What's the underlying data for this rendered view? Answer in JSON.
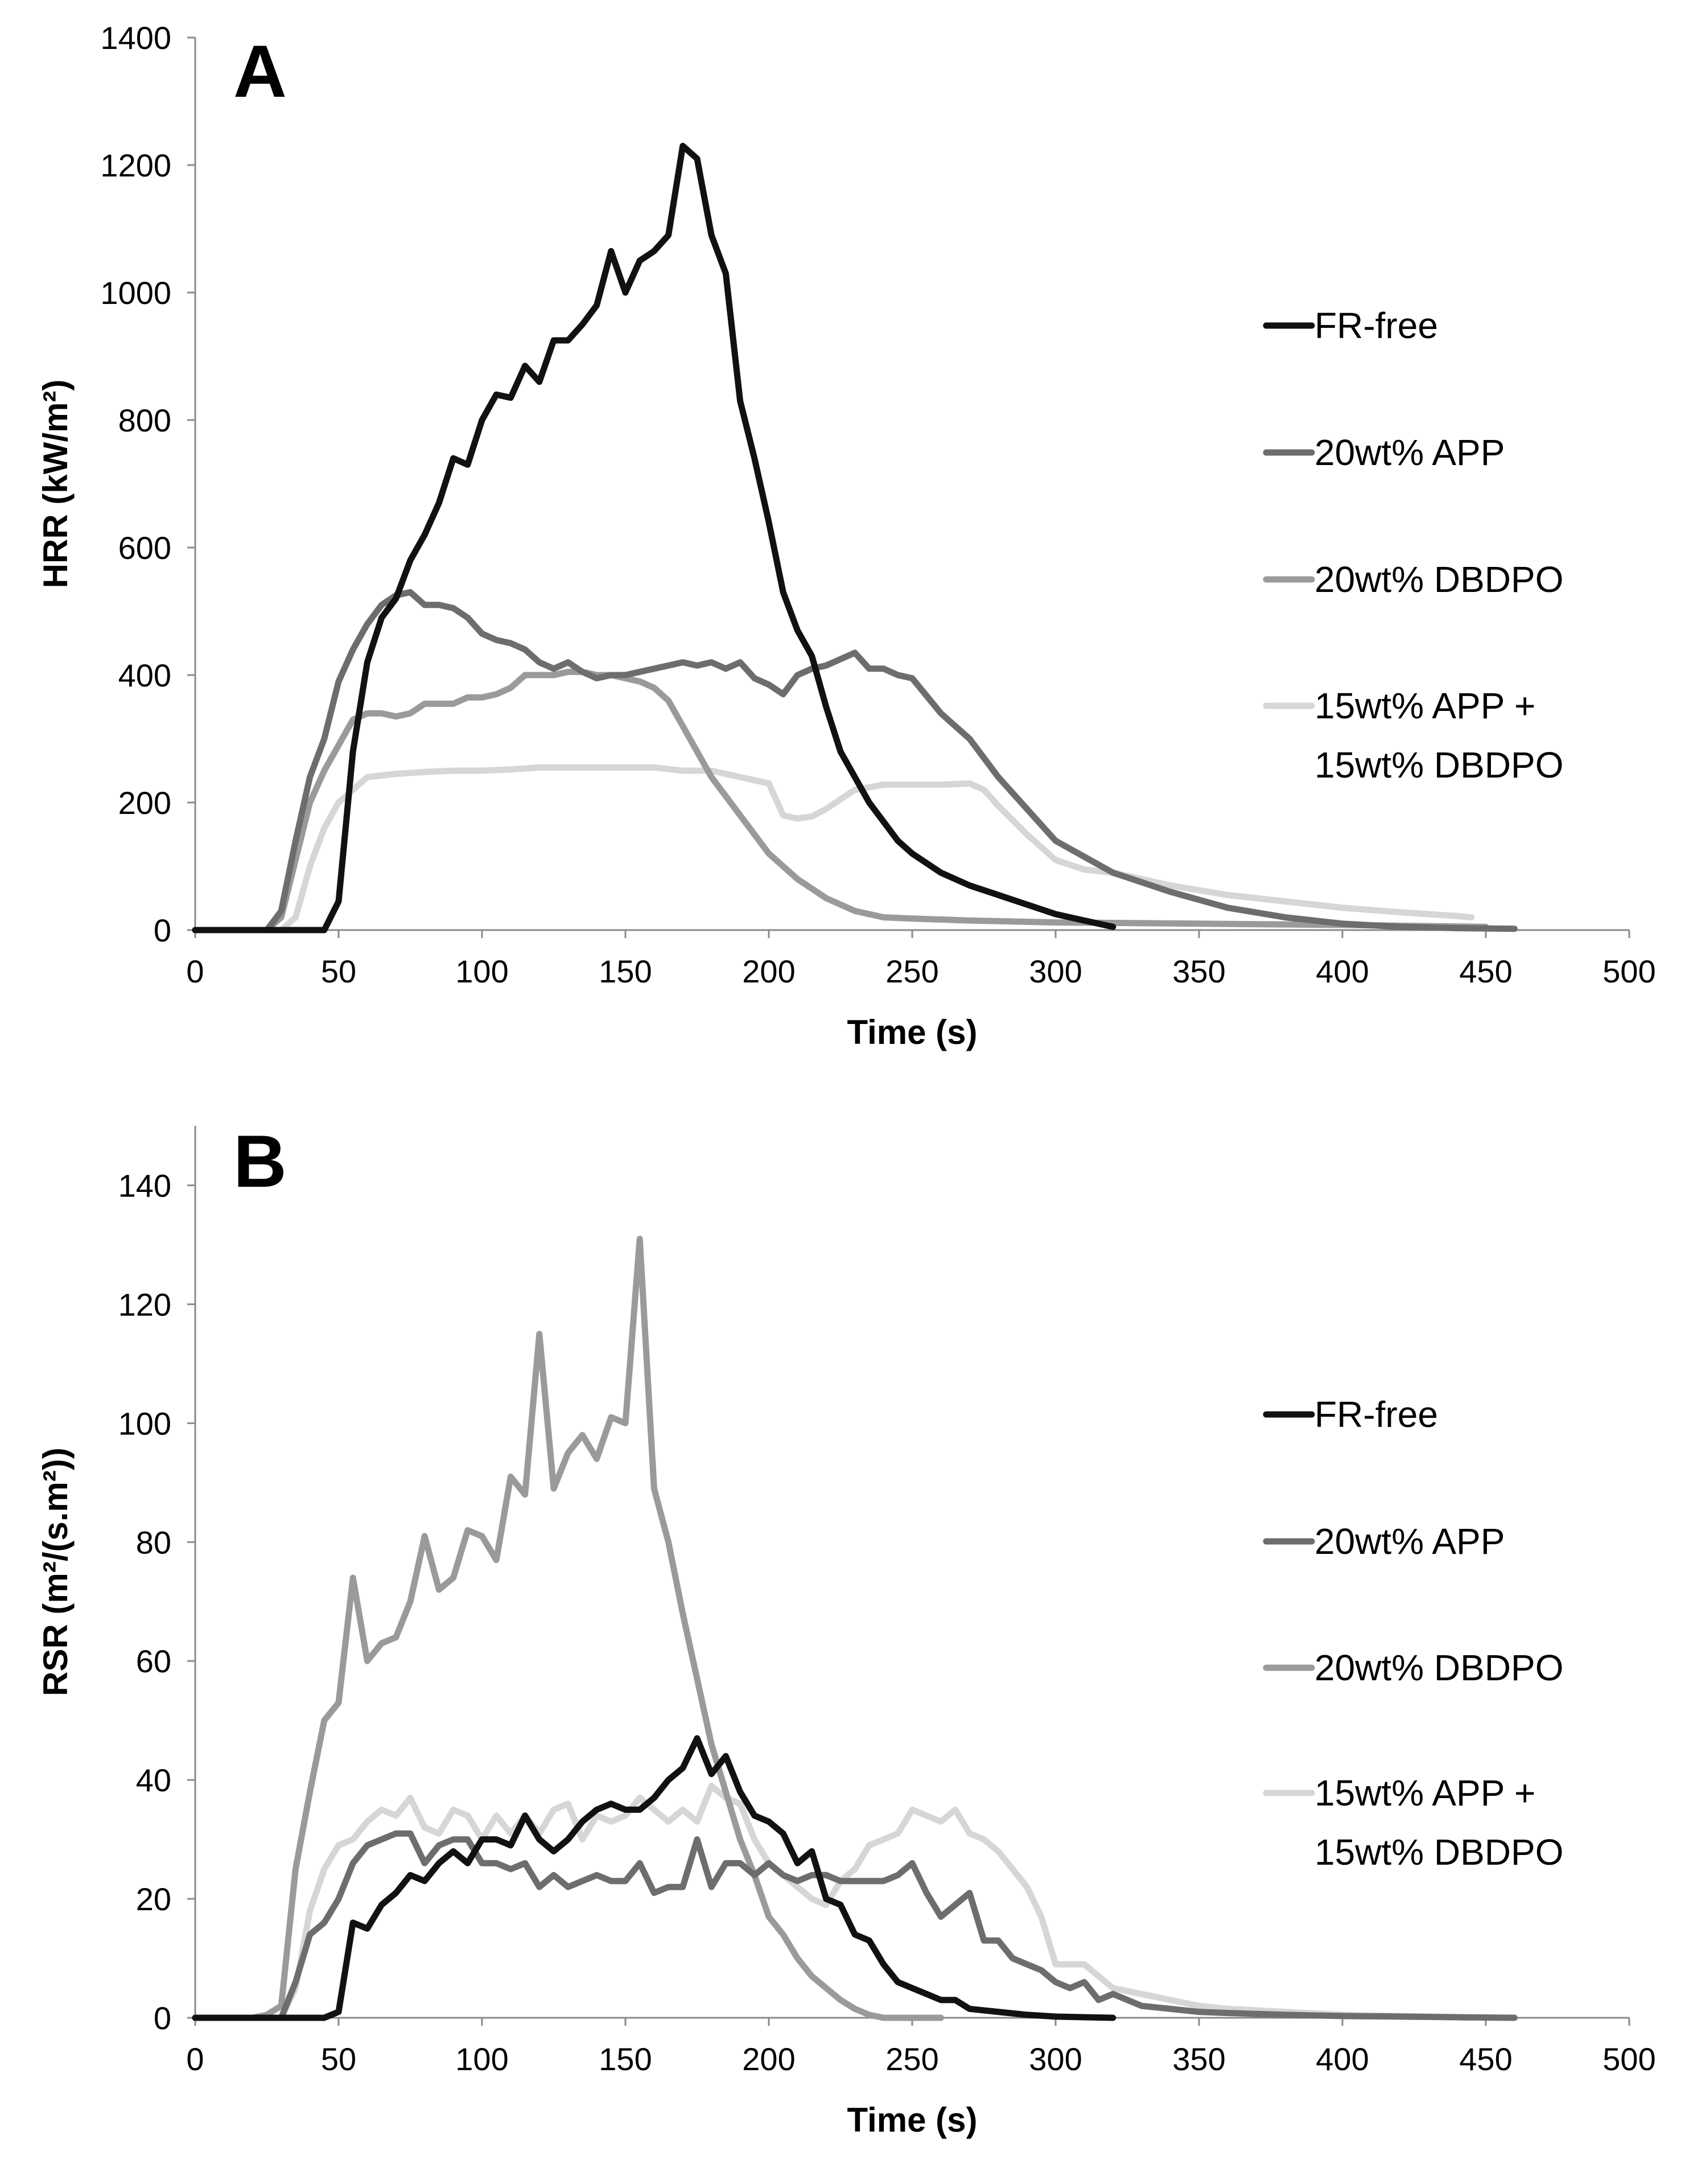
{
  "figure": {
    "panels": [
      "A",
      "B"
    ]
  },
  "chart_data": [
    {
      "panel": "A",
      "type": "line",
      "title": "",
      "xlabel": "Time (s)",
      "ylabel": "HRR (kW/m²)",
      "xlim": [
        0,
        500
      ],
      "ylim": [
        0,
        1400
      ],
      "xticks": [
        "0",
        "50",
        "100",
        "150",
        "200",
        "250",
        "300",
        "350",
        "400",
        "450",
        "500"
      ],
      "yticks": [
        "0",
        "200",
        "400",
        "600",
        "800",
        "1000",
        "1200",
        "1400"
      ],
      "grid": false,
      "legend_position": "right",
      "series": [
        {
          "name": "FR-free",
          "color": "#111111",
          "x": [
            0,
            30,
            45,
            50,
            55,
            60,
            65,
            70,
            75,
            80,
            85,
            90,
            95,
            100,
            105,
            110,
            115,
            120,
            125,
            130,
            135,
            140,
            145,
            150,
            155,
            160,
            165,
            170,
            175,
            180,
            185,
            190,
            195,
            200,
            205,
            210,
            215,
            220,
            225,
            230,
            235,
            240,
            245,
            250,
            260,
            270,
            280,
            290,
            300,
            310,
            320
          ],
          "y": [
            0,
            0,
            0,
            45,
            280,
            420,
            490,
            520,
            580,
            620,
            670,
            740,
            730,
            800,
            840,
            835,
            885,
            860,
            925,
            925,
            950,
            980,
            1065,
            1000,
            1050,
            1065,
            1090,
            1230,
            1210,
            1090,
            1030,
            830,
            740,
            640,
            530,
            470,
            430,
            350,
            280,
            240,
            200,
            170,
            140,
            120,
            90,
            70,
            55,
            40,
            25,
            15,
            5
          ]
        },
        {
          "name": "20wt% APP",
          "color": "#6d6d6d",
          "x": [
            0,
            25,
            30,
            35,
            40,
            45,
            50,
            55,
            60,
            65,
            70,
            75,
            80,
            85,
            90,
            95,
            100,
            105,
            110,
            115,
            120,
            125,
            130,
            135,
            140,
            145,
            150,
            155,
            160,
            165,
            170,
            175,
            180,
            185,
            190,
            195,
            200,
            205,
            210,
            215,
            220,
            225,
            230,
            235,
            240,
            245,
            250,
            260,
            270,
            280,
            290,
            300,
            320,
            340,
            360,
            380,
            400,
            420,
            440,
            460
          ],
          "y": [
            0,
            0,
            30,
            140,
            240,
            300,
            390,
            440,
            480,
            510,
            525,
            530,
            510,
            510,
            505,
            490,
            465,
            455,
            450,
            440,
            420,
            410,
            420,
            405,
            395,
            400,
            400,
            405,
            410,
            415,
            420,
            415,
            420,
            410,
            420,
            395,
            385,
            370,
            400,
            410,
            415,
            425,
            435,
            410,
            410,
            400,
            395,
            340,
            300,
            240,
            190,
            140,
            90,
            60,
            35,
            20,
            10,
            5,
            3,
            2
          ]
        },
        {
          "name": "20wt% DBDPO",
          "color": "#9a9a9a",
          "x": [
            0,
            25,
            30,
            35,
            40,
            45,
            50,
            55,
            60,
            65,
            70,
            75,
            80,
            85,
            90,
            95,
            100,
            105,
            110,
            115,
            120,
            125,
            130,
            135,
            140,
            145,
            150,
            155,
            160,
            165,
            170,
            175,
            180,
            185,
            190,
            195,
            200,
            205,
            210,
            215,
            220,
            230,
            240,
            250,
            270,
            300,
            350,
            400,
            450
          ],
          "y": [
            0,
            0,
            20,
            110,
            200,
            250,
            290,
            330,
            340,
            340,
            335,
            340,
            355,
            355,
            355,
            365,
            365,
            370,
            380,
            400,
            400,
            400,
            405,
            405,
            400,
            400,
            395,
            390,
            380,
            360,
            320,
            280,
            240,
            210,
            180,
            150,
            120,
            100,
            80,
            65,
            50,
            30,
            20,
            18,
            15,
            12,
            10,
            8,
            5
          ]
        },
        {
          "name": "15wt% APP + 15wt% DBDPO",
          "color": "#d6d6d6",
          "x": [
            0,
            30,
            35,
            40,
            45,
            50,
            55,
            60,
            70,
            80,
            90,
            100,
            110,
            120,
            130,
            140,
            150,
            160,
            170,
            180,
            190,
            200,
            205,
            210,
            215,
            220,
            230,
            240,
            250,
            260,
            270,
            275,
            280,
            290,
            300,
            310,
            320,
            340,
            360,
            380,
            400,
            420,
            440,
            445
          ],
          "y": [
            0,
            0,
            20,
            100,
            160,
            200,
            220,
            240,
            245,
            248,
            250,
            250,
            252,
            255,
            255,
            255,
            255,
            255,
            250,
            250,
            240,
            230,
            180,
            175,
            178,
            190,
            220,
            228,
            228,
            228,
            230,
            220,
            195,
            150,
            110,
            95,
            90,
            70,
            55,
            45,
            35,
            28,
            22,
            20
          ]
        }
      ]
    },
    {
      "panel": "B",
      "type": "line",
      "title": "",
      "xlabel": "Time (s)",
      "ylabel": "RSR (m²/(s.m²))",
      "xlim": [
        0,
        500
      ],
      "ylim": [
        0,
        150
      ],
      "xticks": [
        "0",
        "50",
        "100",
        "150",
        "200",
        "250",
        "300",
        "350",
        "400",
        "450",
        "500"
      ],
      "yticks": [
        "0",
        "20",
        "40",
        "60",
        "80",
        "100",
        "120",
        "140"
      ],
      "grid": false,
      "legend_position": "right",
      "series": [
        {
          "name": "FR-free",
          "color": "#111111",
          "x": [
            0,
            40,
            45,
            50,
            55,
            60,
            65,
            70,
            75,
            80,
            85,
            90,
            95,
            100,
            105,
            110,
            115,
            120,
            125,
            130,
            135,
            140,
            145,
            150,
            155,
            160,
            165,
            170,
            175,
            180,
            185,
            190,
            195,
            200,
            205,
            210,
            215,
            220,
            225,
            230,
            235,
            240,
            245,
            250,
            255,
            260,
            265,
            270,
            280,
            290,
            300,
            320
          ],
          "y": [
            0,
            0,
            0,
            1,
            16,
            15,
            19,
            21,
            24,
            23,
            26,
            28,
            26,
            30,
            30,
            29,
            34,
            30,
            28,
            30,
            33,
            35,
            36,
            35,
            35,
            37,
            40,
            42,
            47,
            41,
            44,
            38,
            34,
            33,
            31,
            26,
            28,
            20,
            19,
            14,
            13,
            9,
            6,
            5,
            4,
            3,
            3,
            1.5,
            1,
            0.5,
            0.2,
            0
          ]
        },
        {
          "name": "20wt% APP",
          "color": "#6d6d6d",
          "x": [
            0,
            30,
            35,
            40,
            45,
            50,
            55,
            60,
            65,
            70,
            75,
            80,
            85,
            90,
            95,
            100,
            105,
            110,
            115,
            120,
            125,
            130,
            135,
            140,
            145,
            150,
            155,
            160,
            165,
            170,
            175,
            180,
            185,
            190,
            195,
            200,
            205,
            210,
            215,
            220,
            225,
            230,
            235,
            240,
            245,
            250,
            255,
            260,
            265,
            270,
            275,
            280,
            285,
            290,
            295,
            300,
            305,
            310,
            315,
            320,
            330,
            340,
            350,
            360,
            380,
            400,
            420,
            440,
            460
          ],
          "y": [
            0,
            0,
            6,
            14,
            16,
            20,
            26,
            29,
            30,
            31,
            31,
            26,
            29,
            30,
            30,
            26,
            26,
            25,
            26,
            22,
            24,
            22,
            23,
            24,
            23,
            23,
            26,
            21,
            22,
            22,
            30,
            22,
            26,
            26,
            24,
            26,
            24,
            23,
            24,
            24,
            23,
            23,
            23,
            23,
            24,
            26,
            21,
            17,
            19,
            21,
            13,
            13,
            10,
            9,
            8,
            6,
            5,
            6,
            3,
            4,
            2,
            1.5,
            1,
            0.8,
            0.5,
            0.3,
            0.2,
            0.1,
            0
          ]
        },
        {
          "name": "20wt% DBDPO",
          "color": "#9a9a9a",
          "x": [
            0,
            20,
            25,
            30,
            35,
            40,
            45,
            50,
            55,
            60,
            65,
            70,
            75,
            80,
            85,
            90,
            95,
            100,
            105,
            110,
            115,
            120,
            125,
            130,
            135,
            140,
            145,
            150,
            155,
            160,
            165,
            170,
            175,
            180,
            185,
            190,
            195,
            200,
            205,
            210,
            215,
            220,
            225,
            230,
            235,
            240,
            250,
            260
          ],
          "y": [
            0,
            0,
            0.5,
            2,
            25,
            38,
            50,
            53,
            74,
            60,
            63,
            64,
            70,
            81,
            72,
            74,
            82,
            81,
            77,
            91,
            88,
            115,
            89,
            95,
            98,
            94,
            101,
            100,
            131,
            89,
            80,
            68,
            57,
            46,
            38,
            30,
            24,
            17,
            14,
            10,
            7,
            5,
            3,
            1.5,
            0.5,
            0,
            0,
            0
          ]
        },
        {
          "name": "15wt% APP + 15wt% DBDPO",
          "color": "#d6d6d6",
          "x": [
            0,
            30,
            35,
            40,
            45,
            50,
            55,
            60,
            65,
            70,
            75,
            80,
            85,
            90,
            95,
            100,
            105,
            110,
            115,
            120,
            125,
            130,
            135,
            140,
            145,
            150,
            155,
            160,
            165,
            170,
            175,
            180,
            185,
            190,
            195,
            200,
            205,
            210,
            215,
            220,
            225,
            230,
            235,
            240,
            245,
            250,
            255,
            260,
            265,
            270,
            275,
            280,
            285,
            290,
            295,
            300,
            305,
            310,
            315,
            320,
            330,
            340,
            350,
            360,
            380,
            400,
            420,
            440,
            445
          ],
          "y": [
            0,
            0,
            5,
            18,
            25,
            29,
            30,
            33,
            35,
            34,
            37,
            32,
            31,
            35,
            34,
            30,
            34,
            31,
            34,
            31,
            35,
            36,
            30,
            34,
            33,
            34,
            37,
            35,
            33,
            35,
            33,
            39,
            37,
            36,
            30,
            26,
            24,
            22,
            20,
            19,
            23,
            25,
            29,
            30,
            31,
            35,
            34,
            33,
            35,
            31,
            30,
            28,
            25,
            22,
            17,
            9,
            9,
            9,
            7,
            5,
            4,
            3,
            2,
            1.5,
            1,
            0.5,
            0.3,
            0.1,
            0
          ]
        }
      ]
    }
  ]
}
